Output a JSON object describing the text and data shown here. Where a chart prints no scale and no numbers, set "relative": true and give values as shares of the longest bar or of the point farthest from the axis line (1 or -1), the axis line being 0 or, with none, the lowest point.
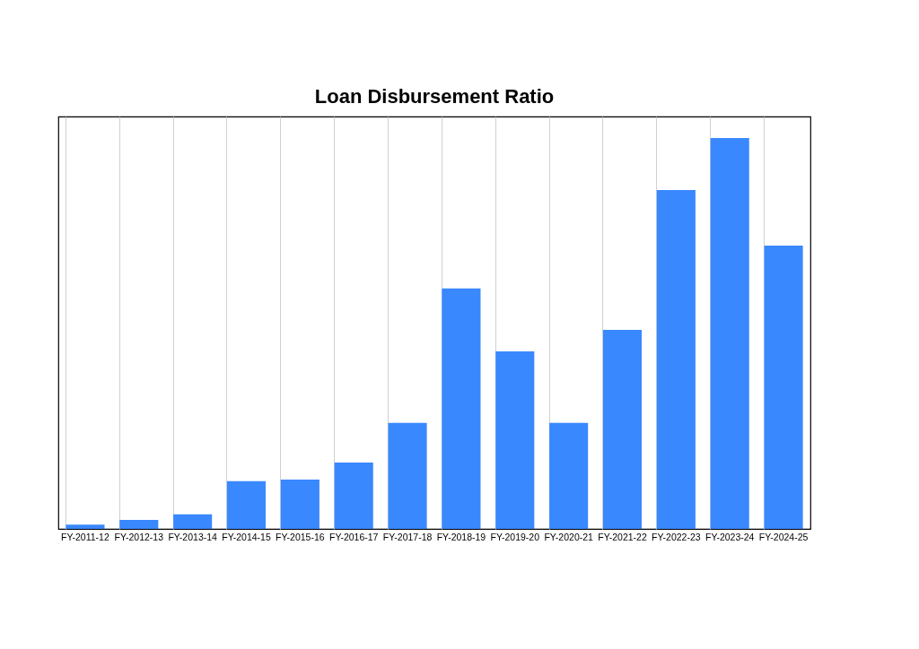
{
  "chart_data": {
    "type": "bar",
    "title": "Loan Disbursement Ratio",
    "relative": true,
    "grid": "x",
    "color": "#3a88fe",
    "categories": [
      "FY-2011-12",
      "FY-2012-13",
      "FY-2013-14",
      "FY-2014-15",
      "FY-2015-16",
      "FY-2016-17",
      "FY-2017-18",
      "FY-2018-19",
      "FY-2019-20",
      "FY-2020-21",
      "FY-2021-22",
      "FY-2022-23",
      "FY-2023-24",
      "FY-2024-25"
    ],
    "values": [
      0.011,
      0.023,
      0.037,
      0.122,
      0.126,
      0.17,
      0.271,
      0.615,
      0.454,
      0.271,
      0.509,
      0.867,
      1,
      0.725
    ]
  }
}
